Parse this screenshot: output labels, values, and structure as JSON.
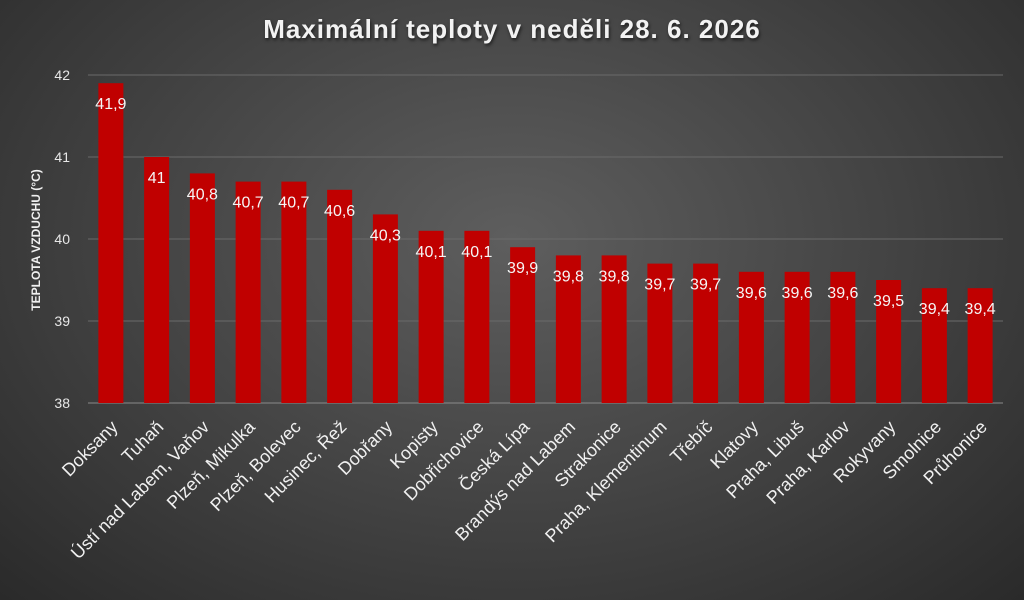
{
  "chart_data": {
    "type": "bar",
    "title": "Maximální teploty v neděli 28. 6. 2026",
    "xlabel": "",
    "ylabel": "TEPLOTA VZDUCHU (°C)",
    "ylim": [
      38,
      42
    ],
    "yticks": [
      "38",
      "39",
      "40",
      "41",
      "42"
    ],
    "grid": true,
    "categories": [
      "Doksany",
      "Tuhaň",
      "Ústí nad Labem, Vaňov",
      "Plzeň, Mikulka",
      "Plzeň, Bolevec",
      "Husinec, Řež",
      "Dobřany",
      "Kopisty",
      "Dobřichovice",
      "Česká Lípa",
      "Brandýs nad Labem",
      "Strakonice",
      "Praha, Klementinum",
      "Třebíč",
      "Klatovy",
      "Praha, Libuš",
      "Praha, Karlov",
      "Rokyvany",
      "Smolnice",
      "Průhonice"
    ],
    "values": [
      41.9,
      41,
      40.8,
      40.7,
      40.7,
      40.6,
      40.3,
      40.1,
      40.1,
      39.9,
      39.8,
      39.8,
      39.7,
      39.7,
      39.6,
      39.6,
      39.6,
      39.5,
      39.4,
      39.4
    ],
    "value_labels": [
      "41,9",
      "41",
      "40,8",
      "40,7",
      "40,7",
      "40,6",
      "40,3",
      "40,1",
      "40,1",
      "39,9",
      "39,8",
      "39,8",
      "39,7",
      "39,7",
      "39,6",
      "39,6",
      "39,6",
      "39,5",
      "39,4",
      "39,4"
    ],
    "colors": {
      "bar": "#c00000",
      "grid": "#6a6a6a",
      "axis": "#8a8a8a"
    }
  }
}
